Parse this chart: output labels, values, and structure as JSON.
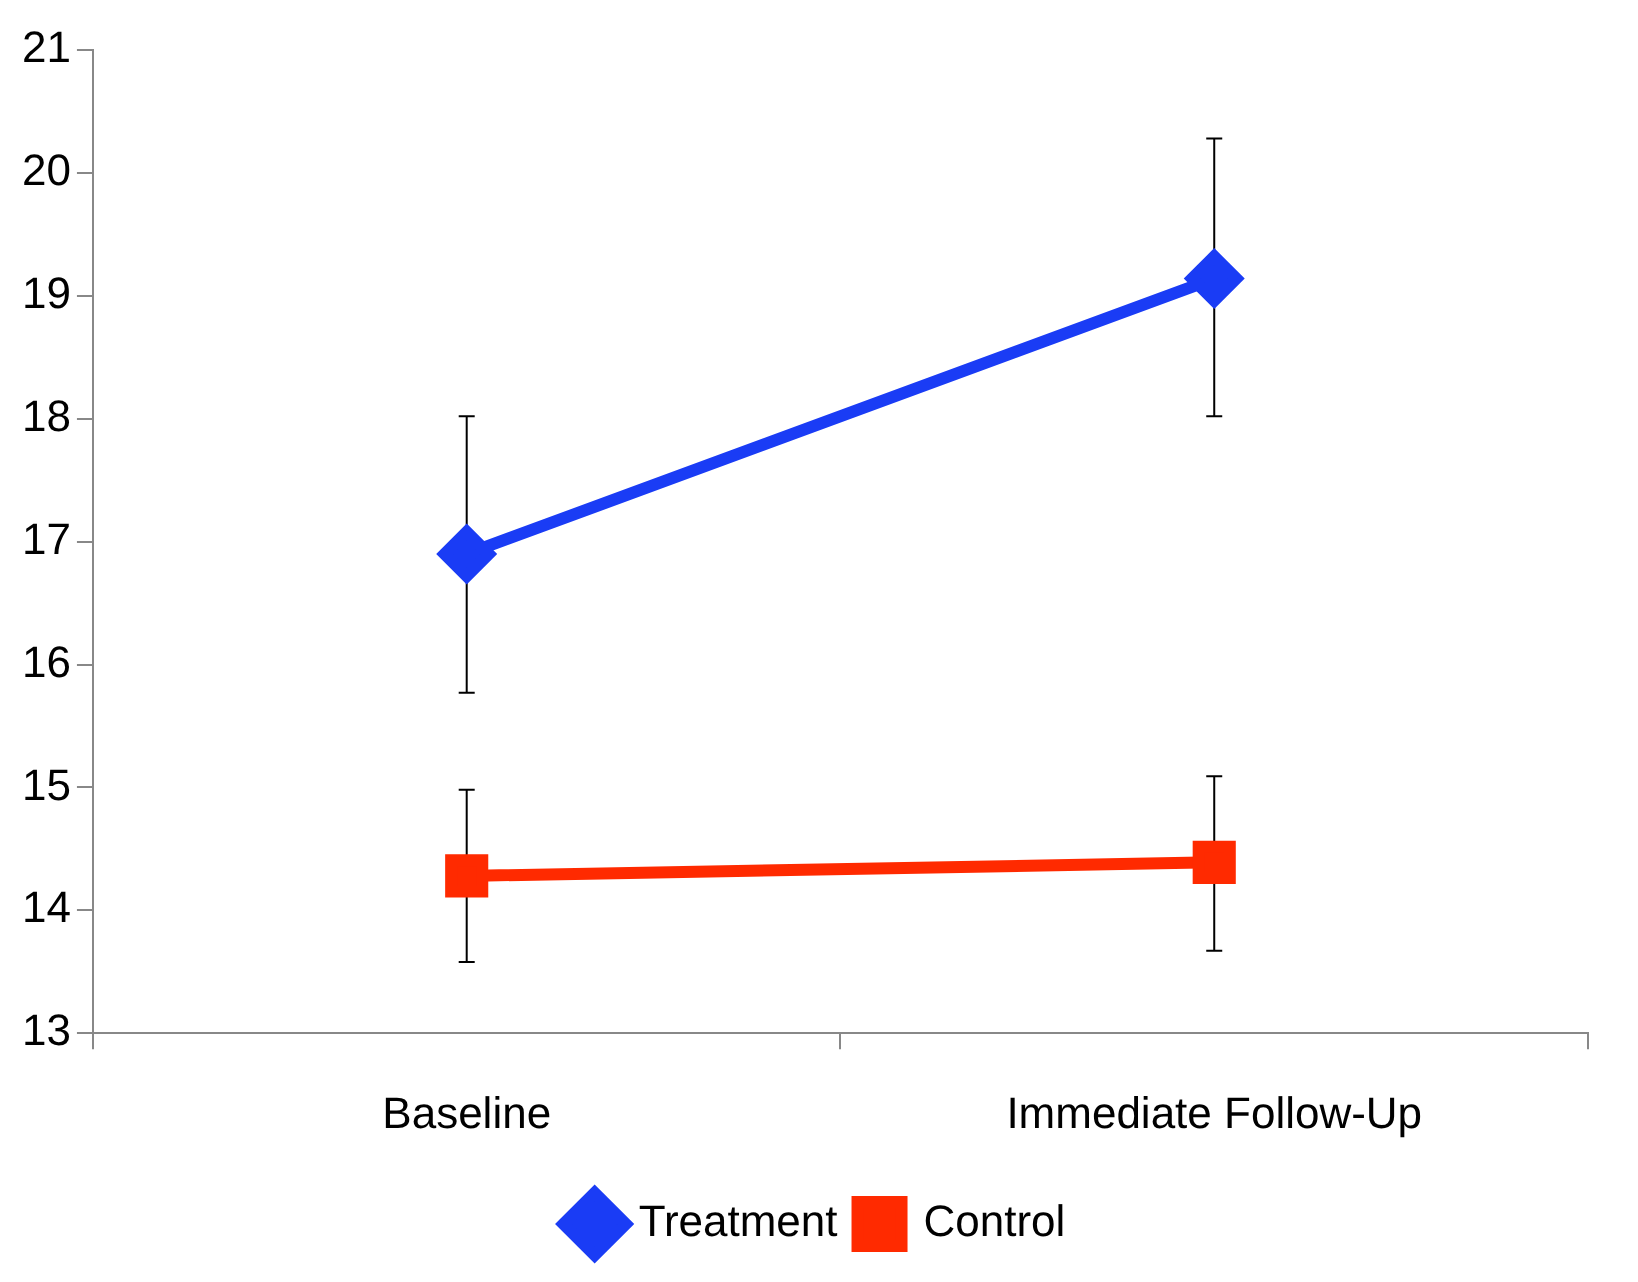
{
  "chart_data": {
    "type": "line",
    "categories": [
      "Baseline",
      "Immediate Follow-Up"
    ],
    "series": [
      {
        "name": "Treatment",
        "color": "#1a3cf5",
        "marker": "diamond",
        "values": [
          16.9,
          19.14
        ],
        "errors": [
          [
            15.77,
            18.02
          ],
          [
            18.02,
            20.28
          ]
        ]
      },
      {
        "name": "Control",
        "color": "#ff2a00",
        "marker": "square",
        "values": [
          14.28,
          14.39
        ],
        "errors": [
          [
            13.58,
            14.98
          ],
          [
            13.67,
            15.09
          ]
        ]
      }
    ],
    "ylim": [
      13,
      21
    ],
    "yticks": [
      13,
      14,
      15,
      16,
      17,
      18,
      19,
      20,
      21
    ],
    "grid": false,
    "legend": "bottom",
    "line_style": "solid"
  }
}
